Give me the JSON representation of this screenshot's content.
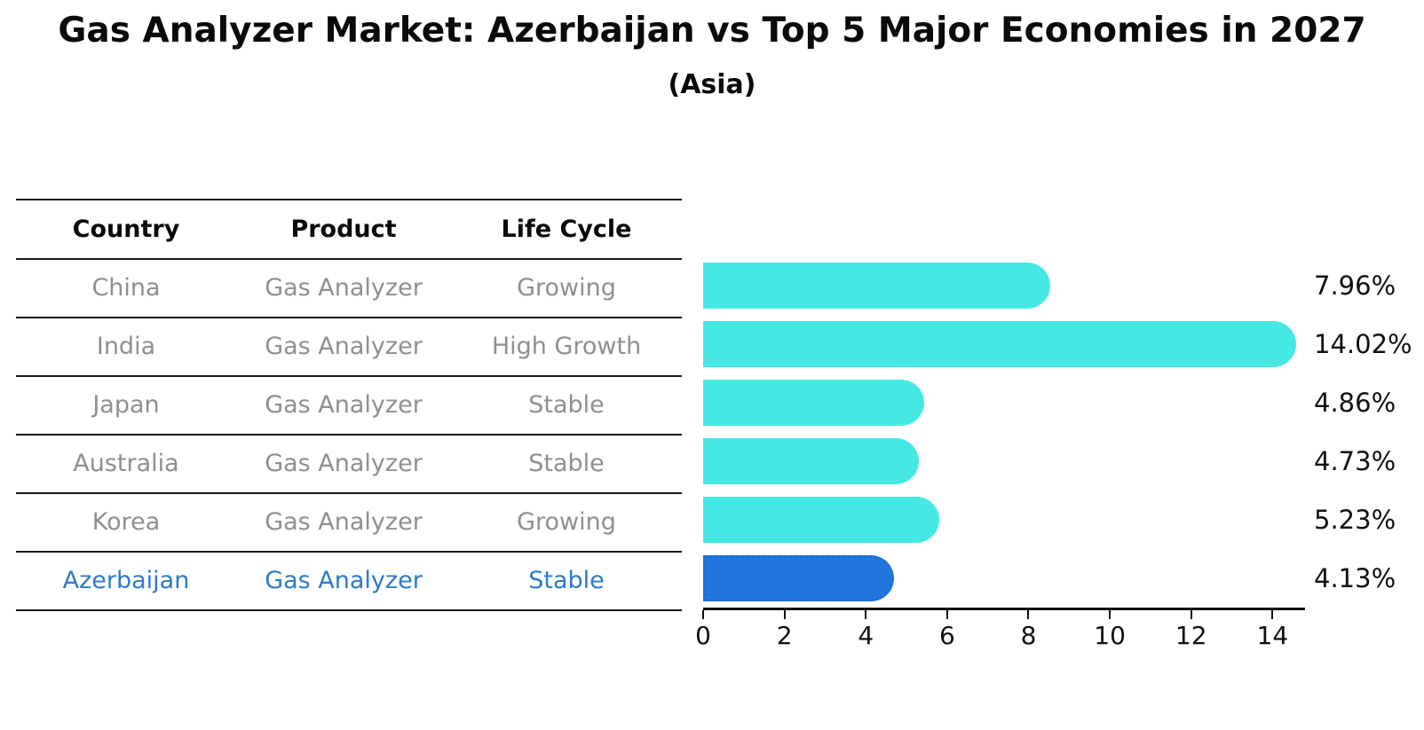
{
  "title": "Gas Analyzer Market: Azerbaijan vs Top 5 Major Economies in 2027",
  "subtitle": "(Asia)",
  "table": {
    "headers": [
      "Country",
      "Product",
      "Life Cycle"
    ],
    "rows": [
      {
        "country": "China",
        "product": "Gas Analyzer",
        "life_cycle": "Growing",
        "highlight": false
      },
      {
        "country": "India",
        "product": "Gas Analyzer",
        "life_cycle": "High Growth",
        "highlight": false
      },
      {
        "country": "Japan",
        "product": "Gas Analyzer",
        "life_cycle": "Stable",
        "highlight": false
      },
      {
        "country": "Australia",
        "product": "Gas Analyzer",
        "life_cycle": "Stable",
        "highlight": false
      },
      {
        "country": "Korea",
        "product": "Gas Analyzer",
        "life_cycle": "Growing",
        "highlight": false
      },
      {
        "country": "Azerbaijan",
        "product": "Gas Analyzer",
        "life_cycle": "Stable",
        "highlight": true
      }
    ]
  },
  "chart_data": {
    "type": "bar",
    "orientation": "horizontal",
    "categories": [
      "China",
      "India",
      "Japan",
      "Australia",
      "Korea",
      "Azerbaijan"
    ],
    "values": [
      7.96,
      14.02,
      4.86,
      4.73,
      5.23,
      4.13
    ],
    "value_labels": [
      "7.96%",
      "14.02%",
      "4.86%",
      "4.73%",
      "5.23%",
      "4.13%"
    ],
    "xticks": [
      "0",
      "2",
      "4",
      "6",
      "8",
      "10",
      "12",
      "14"
    ],
    "xtick_values": [
      0,
      2,
      4,
      6,
      8,
      10,
      12,
      14
    ],
    "xlim": [
      0,
      14.8
    ],
    "grid": false,
    "legend": "none",
    "highlight_category": "Azerbaijan",
    "colors": {
      "bar": "#46e8e3",
      "highlight_bar": "#2277df",
      "highlight_bar_border": "#1a6fd8",
      "highlight_text": "#2b7bc9",
      "row_text": "#8f8f8f",
      "axis": "#111111"
    }
  }
}
